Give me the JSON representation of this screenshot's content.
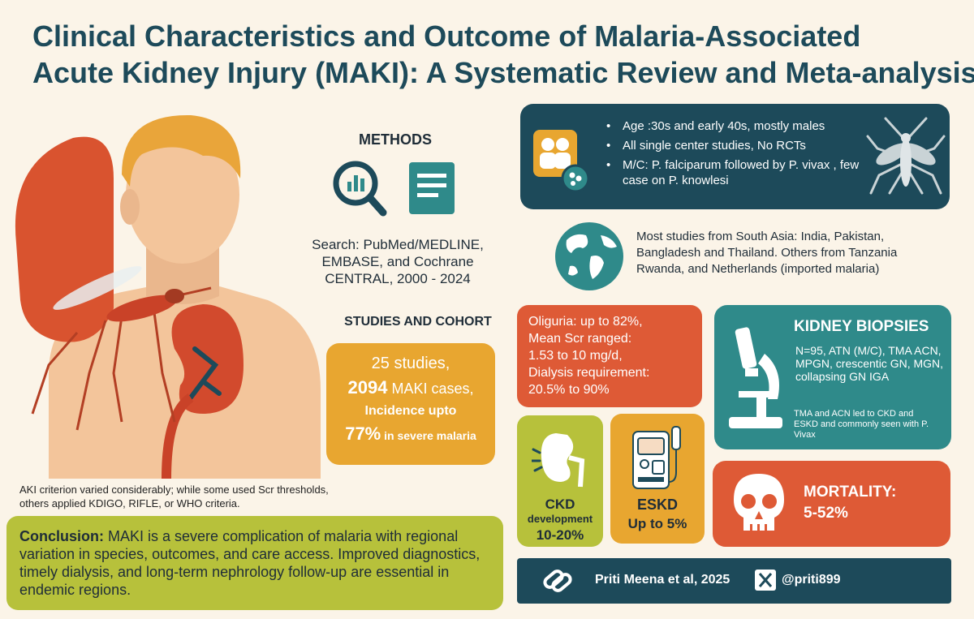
{
  "title": {
    "line1": "Clinical Characteristics and Outcome of Malaria-Associated",
    "line2": "Acute Kidney Injury (MAKI): A Systematic Review and Meta-analysis"
  },
  "methods": {
    "heading": "METHODS",
    "search": "Search: PubMed/MEDLINE, EMBASE, and Cochrane CENTRAL, 2000 - 2024"
  },
  "studies": {
    "heading": "STUDIES AND COHORT",
    "count": "25",
    "count_label": "studies,",
    "cases": "2094",
    "cases_label": "MAKI cases,",
    "incidence_label": "Incidence upto",
    "incidence_value": "77%",
    "incidence_context": "in severe malaria"
  },
  "demographics": {
    "items": [
      "Age :30s and early 40s, mostly males",
      "All single center studies, No RCTs",
      "M/C: P. falciparum followed by P. vivax , few case on P. knowlesi"
    ]
  },
  "geography": {
    "text": "Most studies from South Asia: India, Pakistan, Bangladesh and Thailand. Others from Tanzania Rwanda, and Netherlands (imported malaria)"
  },
  "oliguria": {
    "lines": [
      "Oliguria: up to 82%,",
      "Mean Scr ranged:",
      "1.53 to 10 mg/d,",
      "Dialysis requirement:",
      "20.5% to 90%"
    ]
  },
  "ckd": {
    "label1": "CKD",
    "label2": "development",
    "value": "10-20%"
  },
  "eskd": {
    "label": "ESKD",
    "value": "Up to 5%"
  },
  "biopsy": {
    "heading": "KIDNEY BIOPSIES",
    "text": "N=95, ATN (M/C), TMA ACN, MPGN, crescentic GN, MGN, collapsing GN IGA",
    "note": "TMA and ACN led to CKD and ESKD and commonly seen with P. Vivax"
  },
  "mortality": {
    "heading": "MORTALITY:",
    "value": "5-52%"
  },
  "caption": "AKI criterion varied considerably; while some used Scr thresholds, others applied KDIGO, RIFLE, or WHO criteria.",
  "conclusion": {
    "label": "Conclusion:",
    "text": "MAKI is a severe complication of malaria with regional variation in species, outcomes, and care access. Improved diagnostics, timely dialysis, and long-term nephrology follow-up are essential in endemic regions."
  },
  "footer": {
    "author": "Priti Meena et al, 2025",
    "handle": "@priti899"
  },
  "colors": {
    "navy": "#1d4a5a",
    "teal": "#2f8a8a",
    "orange": "#e8a630",
    "red": "#de5a36",
    "olive": "#b7c13b",
    "background": "#fbf4e8"
  }
}
